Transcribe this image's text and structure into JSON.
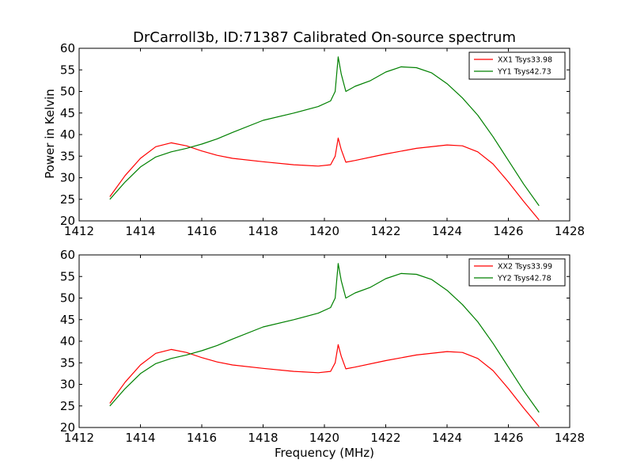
{
  "figure": {
    "title": "DrCarroll3b, ID:71387 Calibrated On-source spectrum",
    "xlabel": "Frequency (MHz)",
    "ylabel": "Power in Kelvin"
  },
  "chart_data": [
    {
      "type": "line",
      "title": "DrCarroll3b, ID:71387 Calibrated On-source spectrum",
      "xlabel": "",
      "ylabel": "Power in Kelvin",
      "xlim": [
        1412,
        1428
      ],
      "ylim": [
        20,
        60
      ],
      "xticks": [
        1412,
        1414,
        1416,
        1418,
        1420,
        1422,
        1424,
        1426,
        1428
      ],
      "yticks": [
        20,
        25,
        30,
        35,
        40,
        45,
        50,
        55,
        60
      ],
      "grid": false,
      "legend_position": "top-right",
      "series": [
        {
          "name": "XX1 Tsys33.98",
          "color": "#ff0000",
          "x": [
            1413.0,
            1413.5,
            1414.0,
            1414.5,
            1415.0,
            1415.5,
            1416.0,
            1416.5,
            1417.0,
            1418.0,
            1419.0,
            1419.8,
            1420.2,
            1420.35,
            1420.45,
            1420.55,
            1420.7,
            1421.0,
            1422.0,
            1423.0,
            1424.0,
            1424.5,
            1425.0,
            1425.5,
            1426.0,
            1426.5,
            1427.0
          ],
          "y": [
            25.6,
            30.5,
            34.5,
            37.2,
            38.1,
            37.4,
            36.2,
            35.2,
            34.5,
            33.7,
            33.0,
            32.7,
            33.0,
            35.0,
            39.2,
            36.5,
            33.6,
            34.0,
            35.5,
            36.8,
            37.6,
            37.4,
            36.0,
            33.2,
            29.0,
            24.5,
            20.2
          ]
        },
        {
          "name": "YY1 Tsys42.73",
          "color": "#008000",
          "x": [
            1413.0,
            1413.5,
            1414.0,
            1414.5,
            1415.0,
            1415.5,
            1416.0,
            1416.5,
            1417.0,
            1418.0,
            1419.0,
            1419.8,
            1420.2,
            1420.35,
            1420.45,
            1420.55,
            1420.7,
            1421.0,
            1421.5,
            1422.0,
            1422.5,
            1423.0,
            1423.5,
            1424.0,
            1424.5,
            1425.0,
            1425.5,
            1426.0,
            1426.5,
            1427.0
          ],
          "y": [
            25.0,
            29.0,
            32.5,
            34.8,
            36.0,
            36.8,
            37.8,
            39.0,
            40.5,
            43.3,
            45.0,
            46.5,
            47.8,
            50.0,
            58.0,
            54.0,
            50.0,
            51.2,
            52.5,
            54.5,
            55.7,
            55.5,
            54.3,
            51.8,
            48.5,
            44.5,
            39.5,
            34.0,
            28.5,
            23.5
          ]
        }
      ]
    },
    {
      "type": "line",
      "title": "",
      "xlabel": "Frequency (MHz)",
      "ylabel": "",
      "xlim": [
        1412,
        1428
      ],
      "ylim": [
        20,
        60
      ],
      "xticks": [
        1412,
        1414,
        1416,
        1418,
        1420,
        1422,
        1424,
        1426,
        1428
      ],
      "yticks": [
        20,
        25,
        30,
        35,
        40,
        45,
        50,
        55,
        60
      ],
      "grid": false,
      "legend_position": "top-right",
      "series": [
        {
          "name": "XX2 Tsys33.99",
          "color": "#ff0000",
          "x": [
            1413.0,
            1413.5,
            1414.0,
            1414.5,
            1415.0,
            1415.5,
            1416.0,
            1416.5,
            1417.0,
            1418.0,
            1419.0,
            1419.8,
            1420.2,
            1420.35,
            1420.45,
            1420.55,
            1420.7,
            1421.0,
            1422.0,
            1423.0,
            1424.0,
            1424.5,
            1425.0,
            1425.5,
            1426.0,
            1426.5,
            1427.0
          ],
          "y": [
            25.6,
            30.5,
            34.5,
            37.2,
            38.1,
            37.4,
            36.2,
            35.2,
            34.5,
            33.7,
            33.0,
            32.7,
            33.0,
            35.0,
            39.2,
            36.5,
            33.6,
            34.0,
            35.5,
            36.8,
            37.6,
            37.4,
            36.0,
            33.2,
            29.0,
            24.5,
            20.2
          ]
        },
        {
          "name": "YY2 Tsys42.78",
          "color": "#008000",
          "x": [
            1413.0,
            1413.5,
            1414.0,
            1414.5,
            1415.0,
            1415.5,
            1416.0,
            1416.5,
            1417.0,
            1418.0,
            1419.0,
            1419.8,
            1420.2,
            1420.35,
            1420.45,
            1420.55,
            1420.7,
            1421.0,
            1421.5,
            1422.0,
            1422.5,
            1423.0,
            1423.5,
            1424.0,
            1424.5,
            1425.0,
            1425.5,
            1426.0,
            1426.5,
            1427.0
          ],
          "y": [
            25.0,
            29.0,
            32.5,
            34.8,
            36.0,
            36.8,
            37.8,
            39.0,
            40.5,
            43.3,
            45.0,
            46.5,
            47.8,
            50.0,
            58.0,
            54.0,
            50.0,
            51.2,
            52.5,
            54.5,
            55.7,
            55.5,
            54.3,
            51.8,
            48.5,
            44.5,
            39.5,
            34.0,
            28.5,
            23.5
          ]
        }
      ]
    }
  ]
}
